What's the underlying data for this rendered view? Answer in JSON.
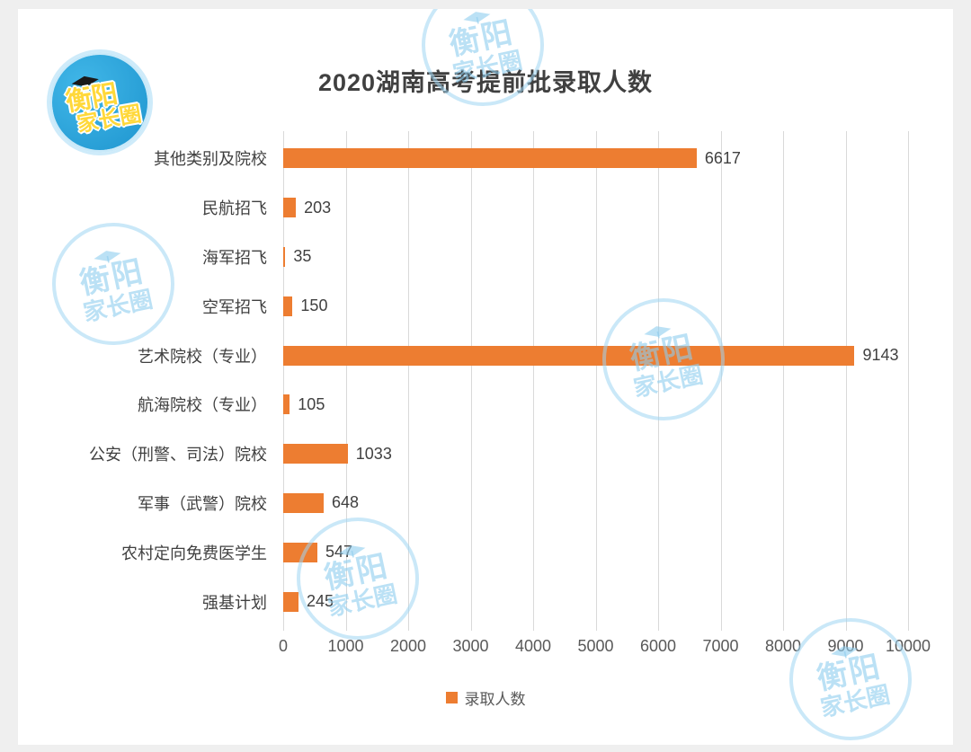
{
  "branding": {
    "name_line1": "衡阳",
    "name_line2": "家长圈",
    "logo_bg": "#2fa9de",
    "logo_text_color": "#ffd83a",
    "watermark_color": "#9ed6f3"
  },
  "chart_data": {
    "type": "bar",
    "orientation": "horizontal",
    "title": "2020湖南高考提前批录取人数",
    "categories": [
      "其他类别及院校",
      "民航招飞",
      "海军招飞",
      "空军招飞",
      "艺术院校（专业）",
      "航海院校（专业）",
      "公安（刑警、司法）院校",
      "军事（武警）院校",
      "农村定向免费医学生",
      "强基计划"
    ],
    "values": [
      6617,
      203,
      35,
      150,
      9143,
      105,
      1033,
      648,
      547,
      245
    ],
    "xlabel": "",
    "ylabel": "",
    "xlim": [
      0,
      10000
    ],
    "x_ticks": [
      0,
      1000,
      2000,
      3000,
      4000,
      5000,
      6000,
      7000,
      8000,
      9000,
      10000
    ],
    "grid": true,
    "bar_color": "#ed7d31",
    "legend_position": "bottom",
    "legend": [
      {
        "label": "录取人数",
        "color": "#ed7d31"
      }
    ]
  }
}
